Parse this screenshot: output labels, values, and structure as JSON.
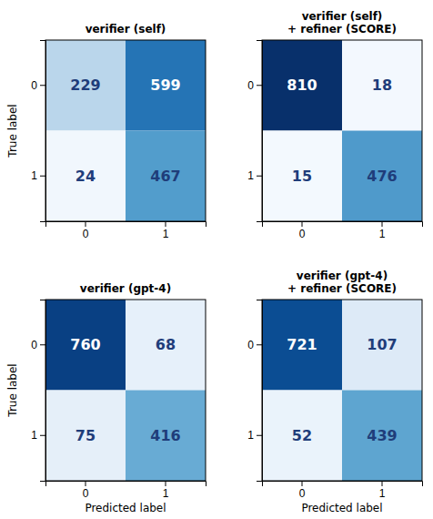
{
  "chart_data": [
    {
      "type": "heatmap",
      "title": "verifier (self)",
      "x": [
        "0",
        "1"
      ],
      "y": [
        "0",
        "1"
      ],
      "cells": [
        [
          229,
          599
        ],
        [
          24,
          467
        ]
      ],
      "color": "Blues",
      "color_range": [
        0,
        810
      ],
      "data_labels": true,
      "ylabel": "True label"
    },
    {
      "type": "heatmap",
      "title": "verifier (self)\n+ refiner (SCORE)",
      "x": [
        "0",
        "1"
      ],
      "y": [
        "0",
        "1"
      ],
      "cells": [
        [
          810,
          18
        ],
        [
          15,
          476
        ]
      ],
      "color": "Blues",
      "color_range": [
        0,
        810
      ],
      "data_labels": true
    },
    {
      "type": "heatmap",
      "title": "verifier (gpt-4)",
      "x": [
        "0",
        "1"
      ],
      "y": [
        "0",
        "1"
      ],
      "cells": [
        [
          760,
          68
        ],
        [
          75,
          416
        ]
      ],
      "color": "Blues",
      "color_range": [
        0,
        810
      ],
      "data_labels": true,
      "xlabel": "Predicted label",
      "ylabel": "True label"
    },
    {
      "type": "heatmap",
      "title": "verifier (gpt-4)\n+ refiner (SCORE)",
      "x": [
        "0",
        "1"
      ],
      "y": [
        "0",
        "1"
      ],
      "cells": [
        [
          721,
          107
        ],
        [
          52,
          439
        ]
      ],
      "color": "Blues",
      "color_range": [
        0,
        810
      ],
      "data_labels": true,
      "xlabel": "Predicted label"
    }
  ]
}
